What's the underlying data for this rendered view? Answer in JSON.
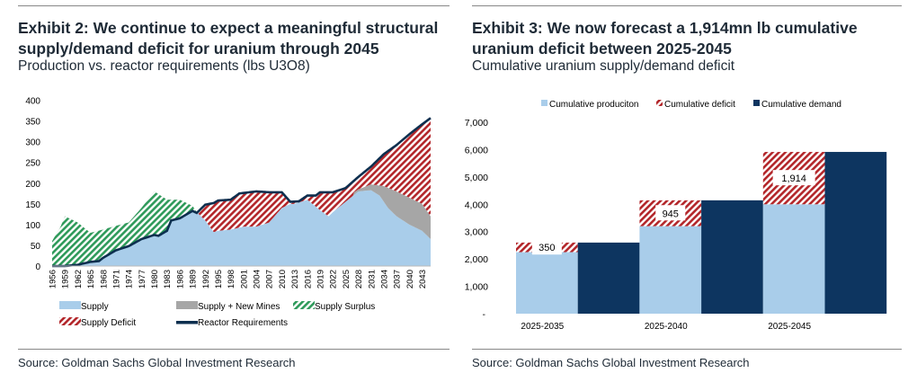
{
  "left": {
    "title": "Exhibit 2: We continue to expect a meaningful structural supply/demand deficit for uranium through 2045",
    "title_line1": "Exhibit 2: We continue to expect a meaningful structural",
    "title_line2": "supply/demand deficit for uranium through 2045",
    "subtitle": "Production vs. reactor requirements (lbs U3O8)",
    "source": "Source: Goldman Sachs Global Investment Research"
  },
  "right": {
    "title_line1": "Exhibit 3: We now forecast a 1,914mn lb cumulative",
    "title_line2": "uranium deficit between 2025-2045",
    "subtitle": "Cumulative uranium supply/demand deficit",
    "source": "Source: Goldman Sachs Global Investment Research"
  },
  "chart_data": [
    {
      "type": "area",
      "title": "Production vs. reactor requirements (lbs U3O8)",
      "ylim": [
        0,
        400
      ],
      "yticks": [
        "0",
        "50",
        "100",
        "150",
        "200",
        "250",
        "300",
        "350",
        "400"
      ],
      "xlim": [
        1956,
        2045
      ],
      "xticks": [
        "1956",
        "1959",
        "1962",
        "1965",
        "1968",
        "1971",
        "1974",
        "1977",
        "1980",
        "1983",
        "1986",
        "1989",
        "1992",
        "1995",
        "1998",
        "2001",
        "2004",
        "2007",
        "2010",
        "2013",
        "2016",
        "2019",
        "2022",
        "2025",
        "2028",
        "2031",
        "2034",
        "2037",
        "2040",
        "2043"
      ],
      "legend": [
        "Supply",
        "Supply + New Mines",
        "Supply Surplus",
        "Supply Deficit",
        "Reactor Requirements"
      ],
      "legend_position": "bottom",
      "colors": {
        "supply": "#a9cdea",
        "new_mines": "#a6a6a6",
        "surplus": "#2e9a5a",
        "deficit": "#b3262a",
        "requirements": "#0d2f4f"
      },
      "series": [
        {
          "name": "Reactor Requirements",
          "points": [
            [
              1956,
              0
            ],
            [
              1959,
              0
            ],
            [
              1962,
              3
            ],
            [
              1965,
              10
            ],
            [
              1967,
              12
            ],
            [
              1968,
              20
            ],
            [
              1971,
              38
            ],
            [
              1974,
              48
            ],
            [
              1977,
              65
            ],
            [
              1980,
              75
            ],
            [
              1981,
              73
            ],
            [
              1983,
              85
            ],
            [
              1984,
              110
            ],
            [
              1986,
              115
            ],
            [
              1989,
              133
            ],
            [
              1990,
              128
            ],
            [
              1992,
              148
            ],
            [
              1994,
              152
            ],
            [
              1995,
              158
            ],
            [
              1998,
              160
            ],
            [
              2000,
              175
            ],
            [
              2004,
              180
            ],
            [
              2007,
              178
            ],
            [
              2010,
              178
            ],
            [
              2012,
              155
            ],
            [
              2014,
              156
            ],
            [
              2016,
              170
            ],
            [
              2018,
              170
            ],
            [
              2019,
              178
            ],
            [
              2022,
              178
            ],
            [
              2025,
              188
            ],
            [
              2028,
              215
            ],
            [
              2031,
              240
            ],
            [
              2034,
              270
            ],
            [
              2037,
              292
            ],
            [
              2040,
              318
            ],
            [
              2043,
              342
            ],
            [
              2045,
              357
            ]
          ]
        },
        {
          "name": "Supply",
          "points": [
            [
              1956,
              60
            ],
            [
              1958,
              95
            ],
            [
              1959,
              120
            ],
            [
              1962,
              105
            ],
            [
              1965,
              80
            ],
            [
              1968,
              88
            ],
            [
              1971,
              97
            ],
            [
              1974,
              105
            ],
            [
              1977,
              140
            ],
            [
              1980,
              180
            ],
            [
              1983,
              160
            ],
            [
              1986,
              160
            ],
            [
              1989,
              145
            ],
            [
              1990,
              130
            ],
            [
              1992,
              110
            ],
            [
              1994,
              82
            ],
            [
              1995,
              85
            ],
            [
              1998,
              88
            ],
            [
              2001,
              95
            ],
            [
              2004,
              95
            ],
            [
              2007,
              105
            ],
            [
              2010,
              140
            ],
            [
              2012,
              150
            ],
            [
              2013,
              150
            ],
            [
              2016,
              160
            ],
            [
              2019,
              135
            ],
            [
              2021,
              120
            ],
            [
              2022,
              130
            ],
            [
              2025,
              155
            ],
            [
              2028,
              180
            ],
            [
              2031,
              183
            ],
            [
              2033,
              170
            ],
            [
              2035,
              140
            ],
            [
              2037,
              120
            ],
            [
              2040,
              100
            ],
            [
              2043,
              85
            ],
            [
              2045,
              65
            ]
          ]
        },
        {
          "name": "Supply + New Mines",
          "points": [
            [
              2027,
              178
            ],
            [
              2028,
              185
            ],
            [
              2031,
              197
            ],
            [
              2034,
              193
            ],
            [
              2037,
              180
            ],
            [
              2040,
              165
            ],
            [
              2043,
              150
            ],
            [
              2045,
              120
            ]
          ]
        }
      ]
    },
    {
      "type": "bar",
      "title": "Cumulative uranium supply/demand deficit",
      "ylim": [
        0,
        7000
      ],
      "yticks": [
        "-",
        "1,000",
        "2,000",
        "3,000",
        "4,000",
        "5,000",
        "6,000",
        "7,000"
      ],
      "categories": [
        "2025-2035",
        "2025-2040",
        "2025-2045"
      ],
      "legend": [
        "Cumulative produciton",
        "Cumulative deficit",
        "Cumulative demand"
      ],
      "legend_position": "top",
      "colors": {
        "production": "#a9cdea",
        "deficit": "#b3262a",
        "demand": "#0d3560"
      },
      "series": [
        {
          "name": "Cumulative produciton",
          "values": [
            2250,
            3200,
            4000
          ]
        },
        {
          "name": "Cumulative deficit",
          "values": [
            350,
            945,
            1914
          ]
        },
        {
          "name": "Cumulative demand",
          "values": [
            2600,
            4145,
            5914
          ]
        }
      ],
      "data_labels": [
        "350",
        "945",
        "1,914"
      ]
    }
  ]
}
